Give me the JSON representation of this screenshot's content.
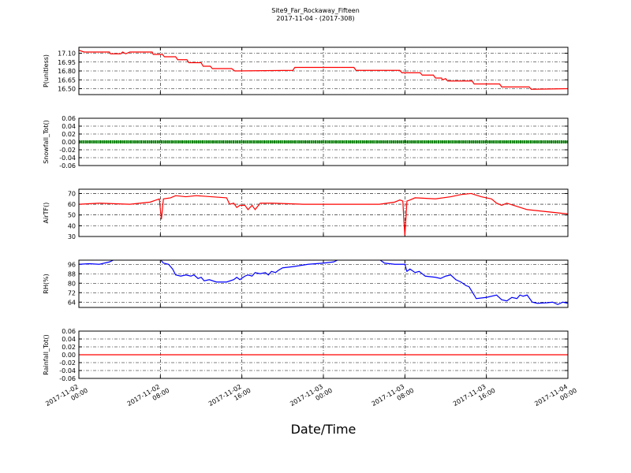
{
  "title": "Site9_Far_Rockaway_Fifteen",
  "subtitle": "2017-11-04 - (2017-308)",
  "chart_data": [
    {
      "type": "line",
      "ylabel": "P(unitless)",
      "color": "#ff0000",
      "ylim": [
        16.4,
        17.2
      ],
      "yticks": [
        {
          "value": 16.5,
          "label": "16.50"
        },
        16.65,
        {
          "value": 16.8,
          "label": "16.80"
        },
        16.95,
        {
          "value": 17.1,
          "label": "17.10"
        }
      ],
      "x": [
        0,
        0.5,
        3,
        3.1,
        4.1,
        4.3,
        4.6,
        5,
        7.2,
        7.3,
        8.2,
        8.4,
        9.5,
        9.7,
        10.6,
        10.8,
        12,
        12.2,
        12.9,
        13.1,
        15,
        15.3,
        21,
        21.2,
        27,
        27.2,
        31.5,
        31.7,
        33.5,
        33.7,
        34.8,
        35,
        35.6,
        35.7,
        36,
        36.2,
        38.6,
        38.8,
        41.3,
        41.5,
        44.2,
        44.4,
        48
      ],
      "values": [
        17.15,
        17.12,
        17.12,
        17.09,
        17.09,
        17.12,
        17.09,
        17.12,
        17.12,
        17.08,
        17.08,
        17.04,
        17.04,
        16.99,
        16.99,
        16.94,
        16.94,
        16.88,
        16.88,
        16.84,
        16.84,
        16.8,
        16.81,
        16.86,
        16.86,
        16.81,
        16.81,
        16.77,
        16.77,
        16.73,
        16.73,
        16.68,
        16.68,
        16.65,
        16.67,
        16.63,
        16.63,
        16.58,
        16.58,
        16.53,
        16.53,
        16.49,
        16.5
      ]
    },
    {
      "type": "line",
      "ylabel": "Snowfall_Tot()",
      "color": "#008000",
      "ylim": [
        -0.06,
        0.06
      ],
      "yticks": [
        -0.06,
        -0.04,
        -0.02,
        {
          "value": 0,
          "label": "0.00"
        },
        0.02,
        0.04,
        0.06
      ],
      "x": [
        0,
        48
      ],
      "values": [
        0,
        0
      ]
    },
    {
      "type": "line",
      "ylabel": "AirTF()",
      "color": "#ff0000",
      "ylim": [
        30,
        74
      ],
      "yticks": [
        30,
        40,
        50,
        60,
        70
      ],
      "x": [
        0,
        2,
        5,
        7,
        7.9,
        8.0,
        8.1,
        8.3,
        9,
        9.5,
        10.5,
        11.5,
        13,
        14.5,
        14.8,
        15.2,
        15.5,
        15.8,
        16.3,
        16.6,
        17,
        17.3,
        17.8,
        19,
        22,
        26,
        29.5,
        31,
        31.5,
        31.8,
        31.9,
        32.0,
        32.2,
        32.5,
        33,
        35,
        36.5,
        37.5,
        38.5,
        39.5,
        40.5,
        41,
        41.5,
        42,
        43,
        44,
        46,
        48
      ],
      "values": [
        60,
        61,
        60,
        62,
        65,
        55,
        46,
        65,
        66,
        68,
        67,
        68,
        67,
        66,
        60,
        61,
        57,
        59,
        59,
        55,
        59,
        55,
        61,
        61,
        60,
        60,
        60,
        62,
        64,
        63,
        45,
        31,
        63,
        64,
        66,
        65,
        67,
        69,
        70,
        67,
        65,
        61,
        59,
        61,
        58,
        55,
        53,
        51
      ]
    },
    {
      "type": "line",
      "ylabel": "RH(%)",
      "color": "#0000ff",
      "ylim": [
        59.5,
        99.5
      ],
      "yticks": [
        64,
        72,
        80,
        88,
        96
      ],
      "x": [
        0,
        1,
        2,
        3,
        3.5,
        8,
        8.3,
        8.8,
        9.2,
        9.5,
        10,
        10.5,
        11,
        11.3,
        11.7,
        12,
        12.3,
        12.8,
        13.5,
        14.5,
        15.2,
        15.5,
        15.8,
        16.3,
        16.6,
        17,
        17.3,
        17.8,
        18.3,
        18.6,
        18.9,
        19.3,
        19.6,
        20,
        21,
        22.5,
        24,
        25,
        25.5,
        29.5,
        30,
        31,
        32,
        32.2,
        32.5,
        33,
        33.4,
        34,
        35,
        35.5,
        36,
        36.5,
        37,
        37.5,
        38,
        38.3,
        38.8,
        39,
        40,
        41,
        41.5,
        42,
        42.5,
        43,
        43.3,
        43.6,
        44,
        44.5,
        45,
        46,
        46.5,
        47,
        47.5,
        48
      ],
      "values": [
        96,
        96.5,
        96,
        98,
        100,
        100,
        97,
        96,
        92,
        87,
        86,
        87,
        86,
        87,
        84,
        85,
        82,
        83,
        81,
        81,
        83,
        85,
        83,
        86,
        87,
        86,
        89,
        88,
        89,
        87,
        90,
        89,
        91,
        93,
        94,
        96,
        97,
        98,
        100,
        100,
        97,
        96,
        96,
        90,
        92,
        89,
        90,
        86,
        85,
        84,
        86,
        87,
        83,
        81,
        78,
        77,
        70,
        67,
        68,
        70,
        66,
        65,
        68,
        67,
        70,
        69,
        70,
        64,
        63,
        63.5,
        64,
        62,
        64,
        63
      ]
    },
    {
      "type": "line",
      "ylabel": "Rainfall_Tot()",
      "color": "#ff0000",
      "ylim": [
        -0.06,
        0.06
      ],
      "yticks": [
        -0.06,
        -0.04,
        -0.02,
        {
          "value": 0,
          "label": "0.00"
        },
        0.02,
        0.04,
        0.06
      ],
      "x": [
        0,
        48
      ],
      "values": [
        0,
        0
      ],
      "xlabel": "Date/Time",
      "xlim": [
        0,
        48
      ],
      "xticks": [
        {
          "value": 0,
          "label": [
            "2017-11-02",
            "00:00"
          ]
        },
        {
          "value": 8,
          "label": [
            "2017-11-02",
            "08:00"
          ]
        },
        {
          "value": 16,
          "label": [
            "2017-11-02",
            "16:00"
          ]
        },
        {
          "value": 24,
          "label": [
            "2017-11-03",
            "00:00"
          ]
        },
        {
          "value": 32,
          "label": [
            "2017-11-03",
            "08:00"
          ]
        },
        {
          "value": 40,
          "label": [
            "2017-11-03",
            "16:00"
          ]
        },
        {
          "value": 48,
          "label": [
            "2017-11-04",
            "00:00"
          ]
        }
      ]
    }
  ]
}
